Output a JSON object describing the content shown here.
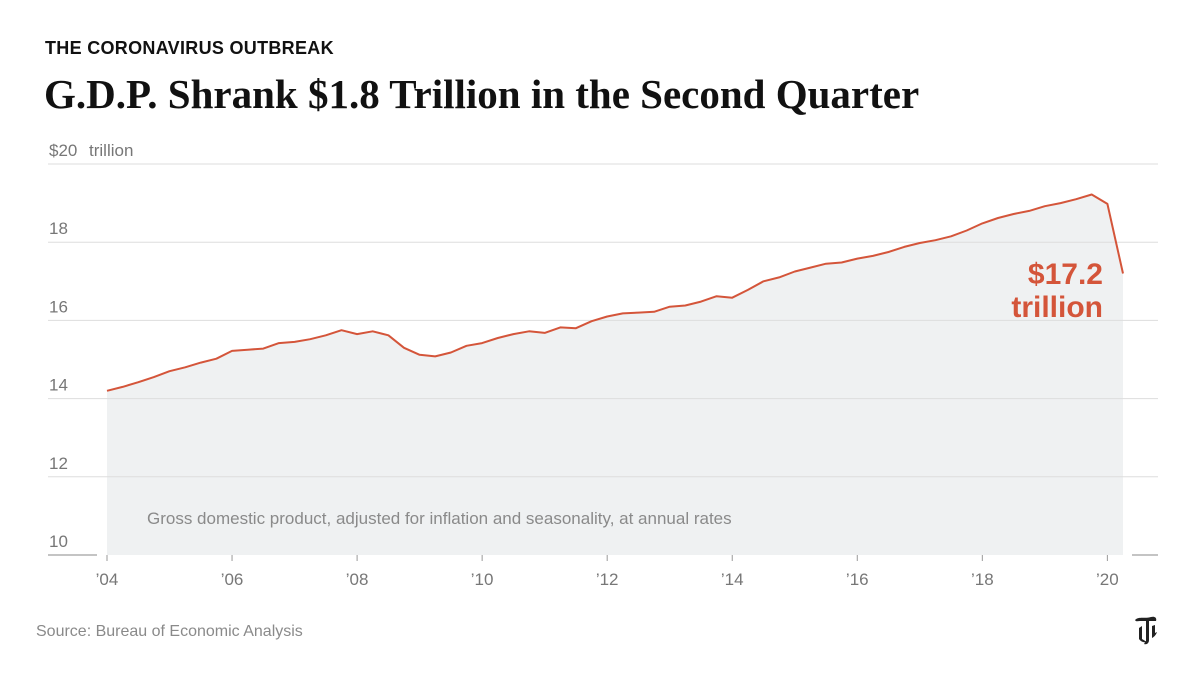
{
  "header": {
    "kicker": "THE CORONAVIRUS OUTBREAK",
    "headline": "G.D.P. Shrank $1.8 Trillion in the Second Quarter"
  },
  "footer": {
    "source": "Source: Bureau of Economic Analysis",
    "logo": "nyt-t-logo"
  },
  "colors": {
    "line": "#d4553a",
    "area": "#eff1f2",
    "grid": "#dddddd",
    "tick_text": "#777777",
    "note_text": "#8a8a8a"
  },
  "chart_data": {
    "type": "area",
    "series": [
      {
        "values": [
          [
            2004.0,
            14.2
          ],
          [
            2004.25,
            14.3
          ],
          [
            2004.5,
            14.42
          ],
          [
            2004.75,
            14.55
          ],
          [
            2005.0,
            14.7
          ],
          [
            2005.25,
            14.8
          ],
          [
            2005.5,
            14.92
          ],
          [
            2005.75,
            15.02
          ],
          [
            2006.0,
            15.22
          ],
          [
            2006.25,
            15.25
          ],
          [
            2006.5,
            15.28
          ],
          [
            2006.75,
            15.42
          ],
          [
            2007.0,
            15.45
          ],
          [
            2007.25,
            15.52
          ],
          [
            2007.5,
            15.62
          ],
          [
            2007.75,
            15.75
          ],
          [
            2008.0,
            15.65
          ],
          [
            2008.25,
            15.72
          ],
          [
            2008.5,
            15.62
          ],
          [
            2008.75,
            15.3
          ],
          [
            2009.0,
            15.12
          ],
          [
            2009.25,
            15.08
          ],
          [
            2009.5,
            15.18
          ],
          [
            2009.75,
            15.35
          ],
          [
            2010.0,
            15.42
          ],
          [
            2010.25,
            15.55
          ],
          [
            2010.5,
            15.65
          ],
          [
            2010.75,
            15.72
          ],
          [
            2011.0,
            15.68
          ],
          [
            2011.25,
            15.82
          ],
          [
            2011.5,
            15.8
          ],
          [
            2011.75,
            15.98
          ],
          [
            2012.0,
            16.1
          ],
          [
            2012.25,
            16.18
          ],
          [
            2012.5,
            16.2
          ],
          [
            2012.75,
            16.22
          ],
          [
            2013.0,
            16.35
          ],
          [
            2013.25,
            16.38
          ],
          [
            2013.5,
            16.48
          ],
          [
            2013.75,
            16.62
          ],
          [
            2014.0,
            16.58
          ],
          [
            2014.25,
            16.78
          ],
          [
            2014.5,
            17.0
          ],
          [
            2014.75,
            17.1
          ],
          [
            2015.0,
            17.25
          ],
          [
            2015.25,
            17.35
          ],
          [
            2015.5,
            17.45
          ],
          [
            2015.75,
            17.48
          ],
          [
            2016.0,
            17.58
          ],
          [
            2016.25,
            17.65
          ],
          [
            2016.5,
            17.75
          ],
          [
            2016.75,
            17.88
          ],
          [
            2017.0,
            17.98
          ],
          [
            2017.25,
            18.05
          ],
          [
            2017.5,
            18.15
          ],
          [
            2017.75,
            18.3
          ],
          [
            2018.0,
            18.48
          ],
          [
            2018.25,
            18.62
          ],
          [
            2018.5,
            18.72
          ],
          [
            2018.75,
            18.8
          ],
          [
            2019.0,
            18.92
          ],
          [
            2019.25,
            19.0
          ],
          [
            2019.5,
            19.1
          ],
          [
            2019.75,
            19.22
          ],
          [
            2020.0,
            18.98
          ],
          [
            2020.25,
            17.2
          ]
        ]
      }
    ],
    "ylim": [
      10,
      20
    ],
    "xlim": [
      2004,
      2020.25
    ],
    "yticks": [
      {
        "value": 20,
        "label": "$20"
      },
      {
        "value": 18,
        "label": "18"
      },
      {
        "value": 16,
        "label": "16"
      },
      {
        "value": 14,
        "label": "14"
      },
      {
        "value": 12,
        "label": "12"
      },
      {
        "value": 10,
        "label": "10"
      }
    ],
    "y_unit_label": "trillion",
    "xticks": [
      {
        "value": 2004,
        "label": "’04"
      },
      {
        "value": 2006,
        "label": "’06"
      },
      {
        "value": 2008,
        "label": "’08"
      },
      {
        "value": 2010,
        "label": "’10"
      },
      {
        "value": 2012,
        "label": "’12"
      },
      {
        "value": 2014,
        "label": "’14"
      },
      {
        "value": 2016,
        "label": "’16"
      },
      {
        "value": 2018,
        "label": "’18"
      },
      {
        "value": 2020,
        "label": "’20"
      }
    ],
    "annotations": [
      {
        "lines": [
          "$17.2",
          "trillion"
        ]
      }
    ],
    "note": "Gross domestic product, adjusted for inflation and seasonality, at annual rates",
    "grid": true
  }
}
